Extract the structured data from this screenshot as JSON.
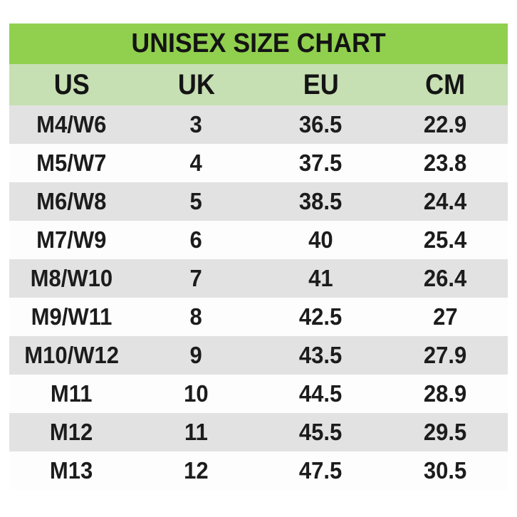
{
  "title": "UNISEX SIZE CHART",
  "colors": {
    "title_bg": "#90d04e",
    "header_bg": "#c6dfb3",
    "row_alt_bg": "#e2e2e2",
    "row_bg": "#fdfdfd",
    "text": "#1c1c1c"
  },
  "chart_data": {
    "type": "table",
    "title": "UNISEX SIZE CHART",
    "columns": [
      "US",
      "UK",
      "EU",
      "CM"
    ],
    "rows": [
      [
        "M4/W6",
        "3",
        "36.5",
        "22.9"
      ],
      [
        "M5/W7",
        "4",
        "37.5",
        "23.8"
      ],
      [
        "M6/W8",
        "5",
        "38.5",
        "24.4"
      ],
      [
        "M7/W9",
        "6",
        "40",
        "25.4"
      ],
      [
        "M8/W10",
        "7",
        "41",
        "26.4"
      ],
      [
        "M9/W11",
        "8",
        "42.5",
        "27"
      ],
      [
        "M10/W12",
        "9",
        "43.5",
        "27.9"
      ],
      [
        "M11",
        "10",
        "44.5",
        "28.9"
      ],
      [
        "M12",
        "11",
        "45.5",
        "29.5"
      ],
      [
        "M13",
        "12",
        "47.5",
        "30.5"
      ]
    ],
    "layout_hints": {
      "row_striping": [
        "gray",
        "white"
      ],
      "alignment": "center",
      "grid": false,
      "legend": false
    }
  }
}
